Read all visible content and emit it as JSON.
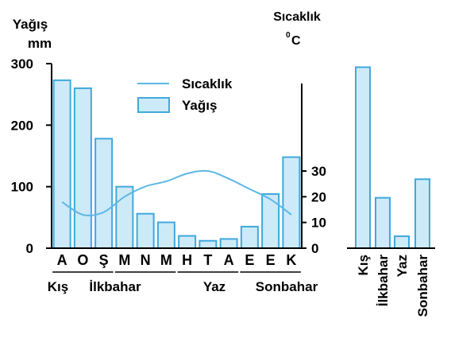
{
  "chart_data": [
    {
      "type": "bar",
      "ylabel_line1": "Yağış",
      "ylabel_line2": "mm",
      "right_label_line1": "Sıcaklık",
      "right_label_deg": "0",
      "right_label_unit": "C",
      "ylim": [
        0,
        300
      ],
      "y2lim": [
        0,
        40
      ],
      "yticks": [
        "0",
        "100",
        "200",
        "300"
      ],
      "y2ticks": [
        "0",
        "10",
        "20",
        "30"
      ],
      "categories": [
        "A",
        "O",
        "Ş",
        "M",
        "N",
        "M",
        "H",
        "T",
        "A",
        "E",
        "E",
        "K"
      ],
      "legend": {
        "line": "Sıcaklık",
        "bar": "Yağış"
      },
      "series": [
        {
          "name": "Yağış",
          "kind": "bar",
          "values": [
            273,
            260,
            178,
            100,
            56,
            42,
            20,
            12,
            15,
            35,
            88,
            148
          ]
        },
        {
          "name": "Sıcaklık",
          "kind": "line",
          "values": [
            18,
            13,
            14,
            20,
            24,
            26,
            29,
            30,
            27,
            23,
            19,
            13
          ]
        }
      ],
      "seasons": [
        {
          "label": "Kış",
          "months": [
            0,
            2
          ]
        },
        {
          "label": "İlkbahar",
          "months": [
            3,
            5
          ]
        },
        {
          "label": "Yaz",
          "months": [
            6,
            8
          ]
        },
        {
          "label": "Sonbahar",
          "months": [
            9,
            11
          ]
        }
      ],
      "grid": false
    },
    {
      "type": "bar",
      "categories": [
        "Kış",
        "İlkbahar",
        "Yaz",
        "Sonbahar"
      ],
      "values": [
        711,
        198,
        47,
        271
      ],
      "ylim": [
        0,
        900
      ]
    }
  ],
  "colors": {
    "bar_fill": "#cdeaf8",
    "bar_stroke": "#3fa9dd",
    "line": "#5bb8e6",
    "axis": "#000000"
  }
}
